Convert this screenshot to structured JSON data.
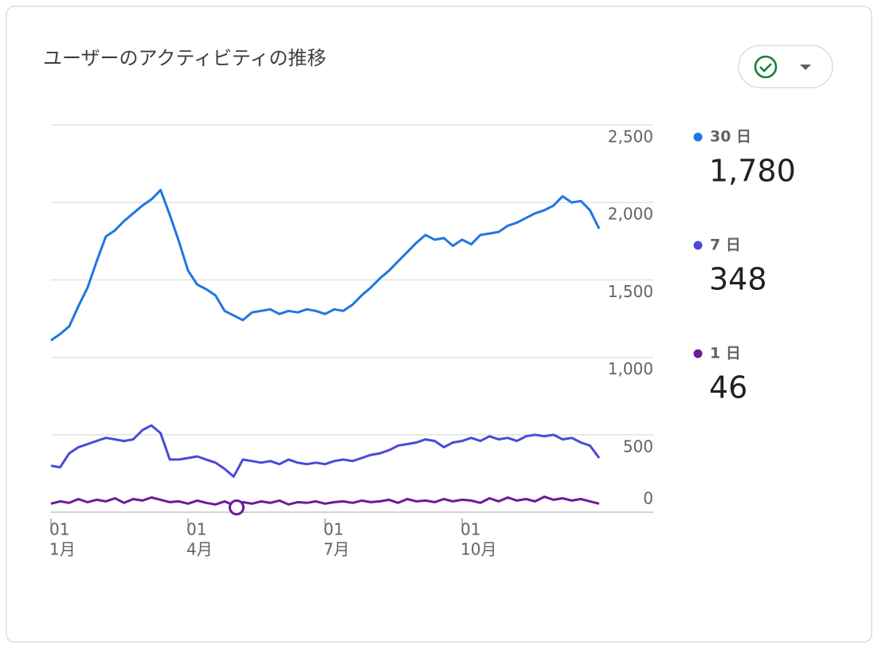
{
  "chart_data": {
    "type": "line",
    "title": "ユーザーのアクティビティの推移",
    "categories": [
      "01",
      null,
      null,
      null,
      null,
      null,
      null,
      null,
      null,
      null,
      null,
      null,
      null,
      null,
      null,
      "01",
      null,
      null,
      null,
      null,
      null,
      null,
      null,
      null,
      null,
      null,
      null,
      null,
      null,
      null,
      "01",
      null,
      null,
      null,
      null,
      null,
      null,
      null,
      null,
      null,
      null,
      null,
      null,
      null,
      null,
      "01",
      null,
      null,
      null,
      null,
      null,
      null,
      null,
      null,
      null,
      null,
      null,
      null,
      null,
      null,
      null
    ],
    "category_months": [
      "1月",
      null,
      null,
      null,
      null,
      null,
      null,
      null,
      null,
      null,
      null,
      null,
      null,
      null,
      null,
      "4月",
      null,
      null,
      null,
      null,
      null,
      null,
      null,
      null,
      null,
      null,
      null,
      null,
      null,
      null,
      "7月",
      null,
      null,
      null,
      null,
      null,
      null,
      null,
      null,
      null,
      null,
      null,
      null,
      null,
      null,
      "10月",
      null,
      null,
      null,
      null,
      null,
      null,
      null,
      null,
      null,
      null,
      null,
      null,
      null,
      null,
      null
    ],
    "ylim": [
      0,
      2500
    ],
    "yticks": [
      0,
      500,
      {
        "value": 1000,
        "label": "1,000"
      },
      {
        "value": 1500,
        "label": "1,500"
      },
      {
        "value": 2000,
        "label": "2,000"
      },
      {
        "value": 2500,
        "label": "2,500"
      }
    ],
    "grid": true,
    "series": [
      {
        "name": "30 日",
        "summary": "1,780",
        "color": "#1f77e0",
        "values": [
          1110,
          1150,
          1200,
          1330,
          1450,
          1620,
          1780,
          1820,
          1880,
          1930,
          1980,
          2020,
          2080,
          1920,
          1750,
          1560,
          1470,
          1440,
          1400,
          1300,
          1270,
          1240,
          1290,
          1300,
          1310,
          1280,
          1300,
          1290,
          1310,
          1300,
          1280,
          1310,
          1300,
          1340,
          1400,
          1450,
          1510,
          1560,
          1620,
          1680,
          1740,
          1790,
          1760,
          1770,
          1720,
          1760,
          1730,
          1790,
          1800,
          1810,
          1850,
          1870,
          1900,
          1930,
          1950,
          1980,
          2040,
          2000,
          2010,
          1950,
          1830
        ]
      },
      {
        "name": "7 日",
        "summary": "348",
        "color": "#4a4ad8",
        "values": [
          300,
          290,
          380,
          420,
          440,
          460,
          480,
          470,
          460,
          470,
          530,
          560,
          510,
          340,
          340,
          350,
          360,
          340,
          320,
          280,
          230,
          340,
          330,
          320,
          330,
          310,
          340,
          320,
          310,
          320,
          310,
          330,
          340,
          330,
          350,
          370,
          380,
          400,
          430,
          440,
          450,
          470,
          460,
          420,
          450,
          460,
          480,
          460,
          490,
          470,
          480,
          460,
          490,
          500,
          490,
          500,
          470,
          480,
          450,
          430,
          350
        ]
      },
      {
        "name": "1 日",
        "summary": "46",
        "color": "#6a1b9a",
        "values": [
          55,
          70,
          60,
          85,
          65,
          80,
          70,
          90,
          60,
          85,
          75,
          95,
          80,
          65,
          70,
          55,
          75,
          60,
          50,
          70,
          45,
          65,
          55,
          70,
          60,
          75,
          50,
          65,
          60,
          70,
          55,
          65,
          70,
          60,
          75,
          65,
          70,
          80,
          60,
          85,
          70,
          75,
          65,
          85,
          70,
          80,
          75,
          60,
          90,
          70,
          95,
          75,
          85,
          70,
          100,
          80,
          90,
          75,
          85,
          70,
          55
        ]
      }
    ]
  }
}
